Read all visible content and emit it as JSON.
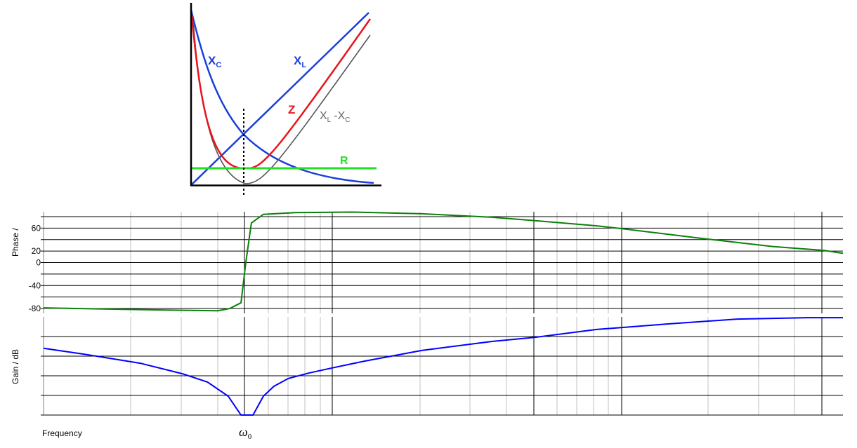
{
  "diagram": {
    "labels": {
      "xc": {
        "main": "X",
        "sub": "C"
      },
      "xl": {
        "main": "X",
        "sub": "L"
      },
      "z": "Z",
      "diff": {
        "a": "X",
        "a_sub": "L",
        "op": "-",
        "b": "X",
        "b_sub": "C"
      },
      "r": "R"
    },
    "colors": {
      "xc": "#1a3fd8",
      "xl": "#1a3fd8",
      "z": "#e8141c",
      "diff": "#555555",
      "r": "#22e022",
      "marker": "#000000"
    }
  },
  "chart_data": [
    {
      "type": "line",
      "ylabel": "Phase /",
      "yticks": [
        60,
        20,
        0,
        -40,
        -80
      ],
      "ylim": [
        -80,
        80
      ],
      "ygrid_step": 20,
      "xscale": "log",
      "grid": true,
      "color": "#0a800a",
      "x": [
        0,
        12.1,
        21.8,
        23.3,
        24.7,
        25.3,
        26.0,
        27.5,
        31.5,
        38.5,
        47.3,
        56.1,
        61.5,
        69.2,
        72.4,
        82.4,
        91.2,
        97.7,
        100
      ],
      "values": [
        -79,
        -82,
        -84,
        -80,
        -70,
        0,
        69,
        84,
        87,
        88,
        85,
        79,
        73,
        64,
        59,
        42,
        28,
        21,
        16
      ]
    },
    {
      "type": "line",
      "ylabel": "Gain / dB",
      "xlabel": "Frequency",
      "xtick_label": {
        "main": "ω",
        "sub": "0"
      },
      "xtick_at": 25.2,
      "ylim": [
        0,
        5
      ],
      "xscale": "log",
      "grid": true,
      "color": "#0000ff",
      "x": [
        0,
        5.1,
        12.1,
        17.4,
        20.5,
        23.1,
        24.7,
        26.2,
        27.5,
        28.8,
        30.6,
        33.2,
        36.1,
        40.2,
        47.3,
        56.1,
        61.5,
        69.2,
        72.4,
        78.0,
        86.8,
        95.6,
        100
      ],
      "values": [
        3.4,
        3.1,
        2.64,
        2.1,
        1.68,
        0.96,
        0,
        0,
        0.96,
        1.46,
        1.86,
        2.14,
        2.4,
        2.75,
        3.29,
        3.75,
        3.96,
        4.36,
        4.46,
        4.64,
        4.89,
        4.96,
        4.96
      ]
    }
  ]
}
